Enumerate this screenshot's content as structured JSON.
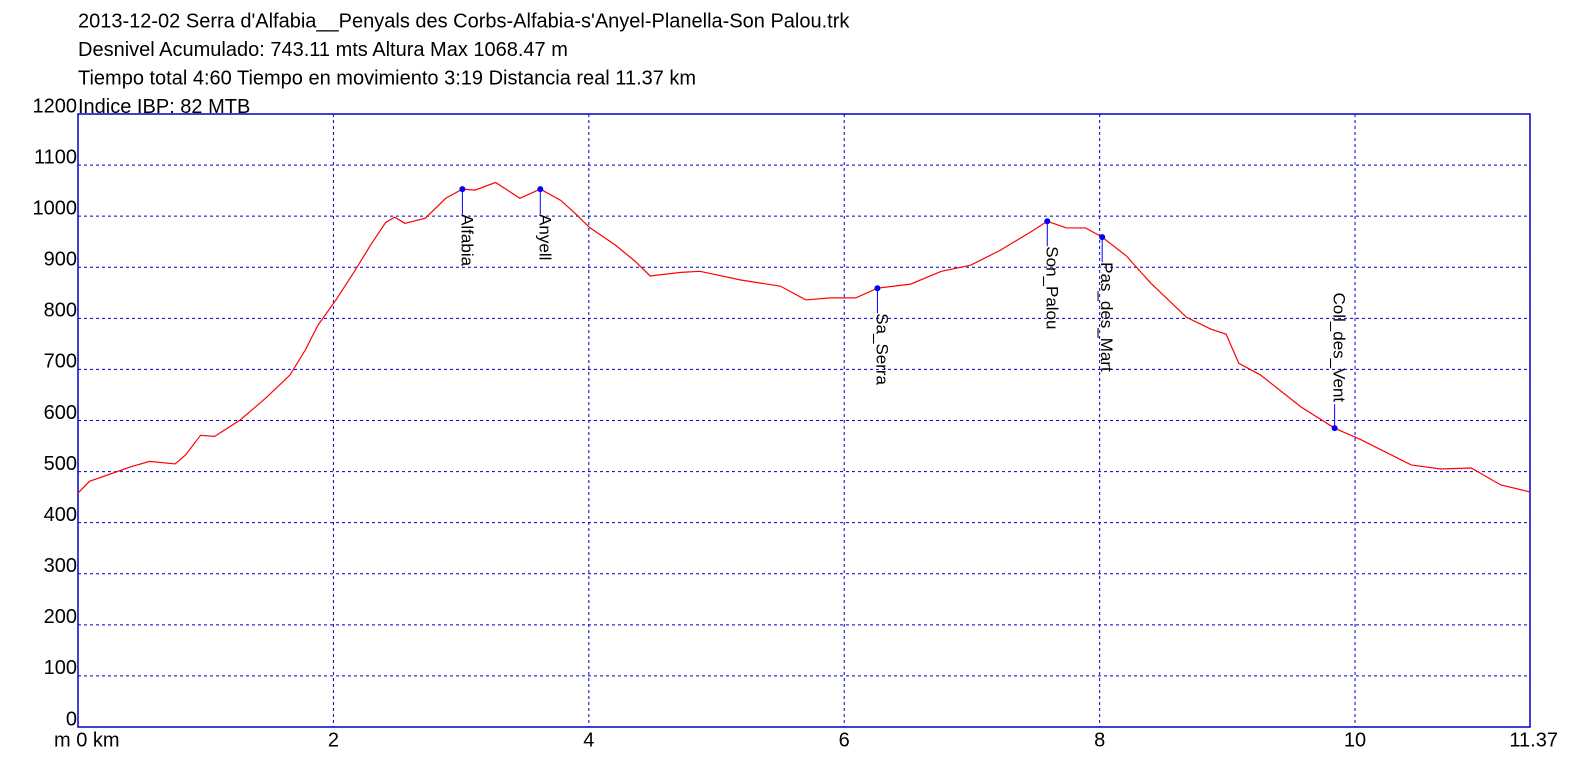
{
  "chart_data": {
    "type": "line",
    "title": [
      "2013-12-02 Serra d'Alfabia__Penyals des Corbs-Alfabia-s'Anyel-Planella-Son Palou.trk",
      "Desnivel Acumulado: 743.11 mts  Altura Max 1068.47 m",
      "Tiempo total 4:60 Tiempo en movimiento 3:19 Distancia real 11.37 km",
      "Indice IBP: 82 MTB"
    ],
    "x": [
      0,
      0.09,
      0.41,
      0.56,
      0.76,
      0.84,
      0.96,
      1.07,
      1.27,
      1.47,
      1.66,
      1.78,
      1.88,
      2.02,
      2.17,
      2.29,
      2.41,
      2.48,
      2.56,
      2.72,
      2.88,
      3.01,
      3.11,
      3.27,
      3.46,
      3.62,
      3.78,
      3.89,
      4.01,
      4.21,
      4.37,
      4.48,
      4.72,
      4.87,
      5.19,
      5.5,
      5.7,
      5.89,
      6.09,
      6.26,
      6.52,
      6.76,
      6.99,
      7.22,
      7.46,
      7.59,
      7.74,
      7.89,
      8.02,
      8.21,
      8.4,
      8.68,
      8.87,
      8.99,
      9.09,
      9.26,
      9.58,
      9.84,
      10.05,
      10.44,
      10.67,
      10.91,
      11.14,
      11.37
    ],
    "series": [
      {
        "color": "#ff0000",
        "values": [
          458,
          481,
          509,
          520,
          515,
          532,
          571,
          569,
          601,
          644,
          689,
          738,
          787,
          836,
          894,
          943,
          988,
          998,
          986,
          996,
          1035,
          1053,
          1051,
          1066,
          1035,
          1053,
          1031,
          1006,
          977,
          943,
          910,
          883,
          890,
          892,
          875,
          863,
          836,
          840,
          840,
          859,
          867,
          892,
          904,
          933,
          969,
          990,
          977,
          977,
          959,
          922,
          869,
          802,
          779,
          769,
          712,
          689,
          626,
          585,
          562,
          513,
          505,
          507,
          474,
          460
        ]
      }
    ],
    "waypoints": [
      {
        "name": "Alfabia",
        "x": 3.01,
        "y": 1053,
        "label_side": "below"
      },
      {
        "name": "Anyell",
        "x": 3.62,
        "y": 1053,
        "label_side": "below"
      },
      {
        "name": "Sa_Serra",
        "x": 6.26,
        "y": 859,
        "label_side": "below"
      },
      {
        "name": "Son_Palou",
        "x": 7.59,
        "y": 990,
        "label_side": "below"
      },
      {
        "name": "Pas_des_Mart",
        "x": 8.02,
        "y": 959,
        "label_side": "below"
      },
      {
        "name": "Coll_des_Vent",
        "x": 9.84,
        "y": 585,
        "label_side": "above"
      }
    ],
    "waypoint_color": "#0000ff",
    "xlim": [
      0,
      11.37
    ],
    "xticks": [
      {
        "value": 0,
        "label": "m 0 km"
      },
      2,
      4,
      6,
      8,
      10,
      11.37
    ],
    "ylim": [
      0,
      1200
    ],
    "yticks": [
      0,
      100,
      200,
      300,
      400,
      500,
      600,
      700,
      800,
      900,
      1000,
      1100,
      1200
    ],
    "grid": true,
    "grid_color": "#0000cc"
  }
}
